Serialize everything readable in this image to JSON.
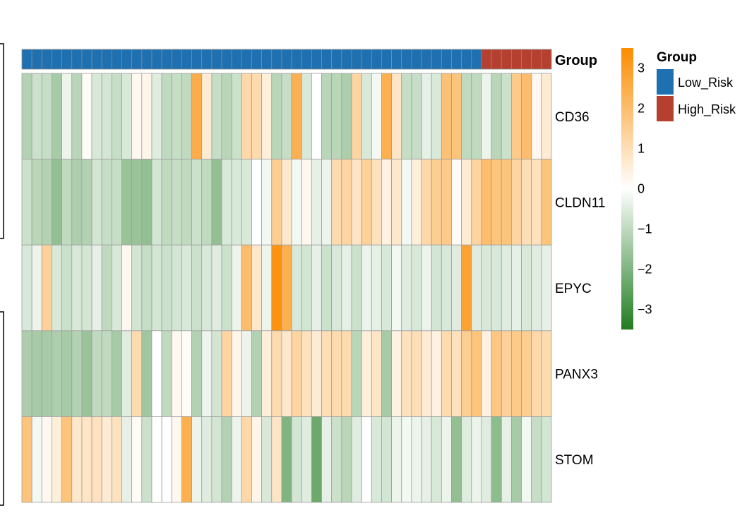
{
  "chart_data": {
    "type": "heatmap",
    "rows": [
      "CD36",
      "CLDN11",
      "EPYC",
      "PANX3",
      "STOM"
    ],
    "annotation": {
      "title": "Group",
      "groups": [
        {
          "name": "Low_Risk",
          "color": "#1f70b0",
          "count": 46
        },
        {
          "name": "High_Risk",
          "color": "#b6402f",
          "count": 7
        }
      ]
    },
    "values": [
      [
        -1.2,
        -0.8,
        -0.9,
        -1.4,
        -0.3,
        -1.1,
        0.1,
        -0.6,
        -0.7,
        -0.9,
        -0.6,
        0.2,
        0.3,
        -0.5,
        -1.0,
        -0.9,
        -1.0,
        2.5,
        0.6,
        -0.9,
        -1.1,
        -0.8,
        1.2,
        1.1,
        0.5,
        -1.1,
        -0.9,
        2.4,
        -0.6,
        0.0,
        -1.1,
        -1.1,
        -1.3,
        1.3,
        -0.6,
        -0.2,
        2.4,
        0.8,
        -0.9,
        -0.9,
        -0.4,
        -0.6,
        1.9,
        1.8,
        -1.0,
        -1.0,
        -0.3,
        -1.1,
        -0.8,
        1.6,
        2.0,
        0.2,
        0.6
      ],
      [
        -0.8,
        -1.1,
        -1.2,
        -1.7,
        -1.0,
        -1.3,
        -1.2,
        -0.7,
        -0.9,
        -0.9,
        -1.6,
        -1.6,
        -1.7,
        -0.7,
        -1.0,
        -0.9,
        -1.0,
        -0.8,
        -1.0,
        -1.7,
        -0.6,
        -0.6,
        -0.6,
        0.0,
        -0.2,
        1.5,
        0.7,
        -0.2,
        0.2,
        -0.4,
        -0.3,
        1.1,
        1.3,
        0.8,
        1.4,
        0.9,
        0.4,
        0.7,
        -0.2,
        0.5,
        1.2,
        1.5,
        1.6,
        0.1,
        0.6,
        1.3,
        2.0,
        1.8,
        1.8,
        1.3,
        1.0,
        0.9,
        1.8
      ],
      [
        -0.6,
        -0.3,
        1.4,
        -0.6,
        -0.8,
        -0.6,
        -0.7,
        -0.4,
        -1.0,
        -0.6,
        0.2,
        -0.7,
        -0.9,
        -0.7,
        -0.8,
        -0.7,
        -0.6,
        -0.8,
        -0.6,
        -0.5,
        -0.8,
        -0.3,
        2.0,
        0.7,
        -0.3,
        3.3,
        2.4,
        -0.6,
        -0.7,
        -0.4,
        -0.8,
        -0.6,
        -0.4,
        -0.8,
        -0.3,
        -0.4,
        -0.6,
        -0.2,
        -0.5,
        -0.6,
        -0.3,
        -0.7,
        -0.6,
        -0.5,
        2.8,
        -0.5,
        -0.6,
        -0.6,
        -0.5,
        -0.4,
        -0.6,
        -0.5,
        -0.4
      ],
      [
        -1.3,
        -1.4,
        -1.4,
        -1.3,
        -1.4,
        -1.2,
        -1.6,
        -1.0,
        -1.0,
        -1.4,
        -0.5,
        1.1,
        -1.5,
        0.0,
        -1.0,
        0.2,
        0.1,
        -1.2,
        -0.3,
        -0.7,
        1.3,
        0.3,
        -0.3,
        -1.2,
        0.5,
        1.1,
        0.7,
        1.3,
        0.9,
        0.6,
        1.0,
        1.1,
        1.1,
        -1.1,
        0.5,
        0.8,
        -1.4,
        0.4,
        0.9,
        1.0,
        0.6,
        0.4,
        1.1,
        0.9,
        1.5,
        1.8,
        0.4,
        1.7,
        1.4,
        1.6,
        1.5,
        1.2,
        1.1
      ],
      [
        1.8,
        -0.2,
        0.2,
        0.5,
        1.8,
        0.7,
        0.8,
        0.9,
        0.6,
        0.9,
        -0.4,
        0.1,
        -0.8,
        0.0,
        0.0,
        0.2,
        2.4,
        -0.3,
        -0.5,
        -0.7,
        -1.2,
        -0.3,
        1.2,
        0.3,
        -0.6,
        0.8,
        -2.0,
        -0.7,
        -0.5,
        -2.3,
        -0.4,
        -0.8,
        -1.1,
        -0.5,
        0.0,
        -0.6,
        -0.7,
        -0.3,
        -0.2,
        -0.3,
        -0.4,
        -0.6,
        -0.3,
        -1.7,
        -0.5,
        -0.3,
        -0.5,
        -1.8,
        -0.4,
        -1.4,
        -0.2,
        -0.9,
        -0.7
      ]
    ],
    "color_scale": {
      "min": -3.5,
      "mid": 0,
      "max": 3.5,
      "low_color": "#217c21",
      "mid_color": "#ffffff",
      "high_color": "#fb8c00",
      "ticks": [
        3,
        2,
        1,
        0,
        -1,
        -2,
        -3
      ]
    }
  }
}
